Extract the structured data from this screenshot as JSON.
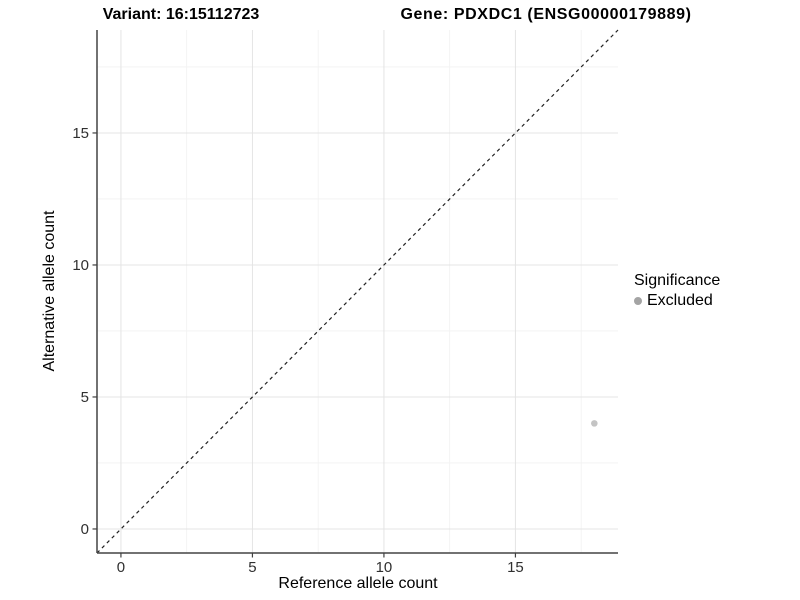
{
  "header": {
    "variant_title": "Variant: 16:15112723",
    "gene_title": "Gene: PDXDC1 (ENSG00000179889)"
  },
  "chart_data": {
    "type": "scatter",
    "xlabel": "Reference allele count",
    "ylabel": "Alternative allele count",
    "xlim": [
      -0.91,
      18.9
    ],
    "ylim": [
      -0.91,
      18.9
    ],
    "x_ticks": [
      0,
      5,
      10,
      15
    ],
    "y_ticks": [
      0,
      5,
      10,
      15
    ],
    "x_minor_gridlines": [
      2.5,
      7.5,
      12.5,
      17.5
    ],
    "y_minor_gridlines": [
      2.5,
      7.5,
      12.5,
      17.5
    ],
    "grid": "major+minor",
    "legend_position": "right",
    "reference_line": {
      "type": "identity",
      "slope": 1,
      "intercept": 0,
      "style": "dashed",
      "color": "#222222"
    },
    "series": [
      {
        "name": "Excluded",
        "marker": "circle",
        "color": "#c4c4c4",
        "points": [
          {
            "x": 18,
            "y": 4
          }
        ]
      }
    ],
    "legend": {
      "title": "Significance",
      "entries": [
        {
          "label": "Excluded",
          "swatch_color": "#a4a4a4"
        }
      ]
    },
    "colors": {
      "grid_major": "#e4e4e4",
      "grid_minor": "#f2f2f2",
      "axis_line": "#444444",
      "tick_mark": "#404040",
      "tick_label": "#303030",
      "panel_background": "#ffffff"
    }
  }
}
